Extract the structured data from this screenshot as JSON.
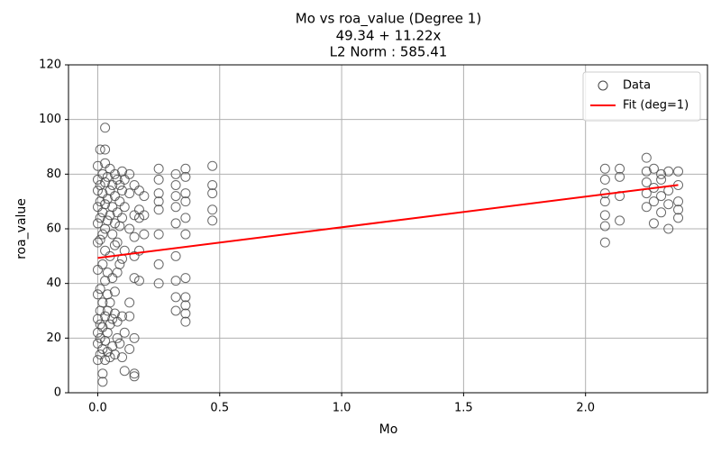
{
  "chart_data": {
    "type": "scatter",
    "title": [
      "Mo vs roa_value (Degree 1)",
      "49.34 + 11.22x",
      "L2 Norm : 585.41"
    ],
    "x_label": "Mo",
    "y_label": "roa_value",
    "xlim": [
      -0.12,
      2.5
    ],
    "ylim": [
      0,
      120
    ],
    "xticks": [
      {
        "value": 0,
        "label": "0.0"
      },
      {
        "value": 0.5,
        "label": "0.5"
      },
      {
        "value": 1,
        "label": "1.0"
      },
      {
        "value": 1.5,
        "label": "1.5"
      },
      {
        "value": 2,
        "label": "2.0"
      }
    ],
    "yticks": [
      0,
      20,
      40,
      60,
      80,
      100,
      120
    ],
    "grid": true,
    "legend": "upper right",
    "series": [
      {
        "name": "Data",
        "color": "#444444",
        "kind": "scatter",
        "x": [
          0,
          0,
          0,
          0,
          0,
          0,
          0,
          0,
          0,
          0,
          0,
          0,
          0.01,
          0.01,
          0.01,
          0.01,
          0.01,
          0.01,
          0.01,
          0.01,
          0.01,
          0.01,
          0.02,
          0.02,
          0.02,
          0.02,
          0.02,
          0.02,
          0.02,
          0.02,
          0.02,
          0.02,
          0.03,
          0.03,
          0.03,
          0.03,
          0.03,
          0.03,
          0.03,
          0.03,
          0.03,
          0.03,
          0.03,
          0.04,
          0.04,
          0.04,
          0.04,
          0.04,
          0.04,
          0.04,
          0.04,
          0.05,
          0.05,
          0.05,
          0.05,
          0.05,
          0.05,
          0.05,
          0.06,
          0.06,
          0.06,
          0.06,
          0.06,
          0.06,
          0.07,
          0.07,
          0.07,
          0.07,
          0.07,
          0.07,
          0.07,
          0.08,
          0.08,
          0.08,
          0.08,
          0.08,
          0.08,
          0.09,
          0.09,
          0.09,
          0.09,
          0.09,
          0.1,
          0.1,
          0.1,
          0.1,
          0.1,
          0.1,
          0.11,
          0.11,
          0.11,
          0.11,
          0.11,
          0.13,
          0.13,
          0.13,
          0.13,
          0.13,
          0.13,
          0.15,
          0.15,
          0.15,
          0.15,
          0.15,
          0.15,
          0.15,
          0.15,
          0.17,
          0.17,
          0.17,
          0.17,
          0.17,
          0.19,
          0.19,
          0.19,
          0.25,
          0.25,
          0.25,
          0.25,
          0.25,
          0.25,
          0.25,
          0.25,
          0.32,
          0.32,
          0.32,
          0.32,
          0.32,
          0.32,
          0.32,
          0.32,
          0.32,
          0.36,
          0.36,
          0.36,
          0.36,
          0.36,
          0.36,
          0.36,
          0.36,
          0.36,
          0.36,
          0.36,
          0.47,
          0.47,
          0.47,
          0.47,
          0.47,
          2.08,
          2.08,
          2.08,
          2.08,
          2.08,
          2.08,
          2.08,
          2.14,
          2.14,
          2.14,
          2.14,
          2.25,
          2.25,
          2.25,
          2.25,
          2.25,
          2.28,
          2.28,
          2.28,
          2.28,
          2.31,
          2.31,
          2.31,
          2.31,
          2.34,
          2.34,
          2.34,
          2.34,
          2.38,
          2.38,
          2.38,
          2.38,
          2.38
        ],
        "values": [
          12,
          18,
          22,
          27,
          36,
          45,
          55,
          62,
          68,
          74,
          78,
          83,
          14,
          20,
          25,
          30,
          38,
          56,
          64,
          70,
          76,
          89,
          4,
          7,
          16,
          24,
          33,
          47,
          58,
          66,
          73,
          80,
          97,
          89,
          12,
          19,
          28,
          41,
          52,
          60,
          69,
          77,
          84,
          15,
          22,
          30,
          36,
          44,
          63,
          71,
          79,
          13,
          25,
          33,
          50,
          65,
          74,
          82,
          17,
          27,
          42,
          58,
          68,
          76,
          14,
          29,
          37,
          54,
          62,
          72,
          80,
          20,
          26,
          44,
          55,
          66,
          78,
          18,
          47,
          61,
          70,
          76,
          13,
          28,
          49,
          64,
          74,
          81,
          8,
          22,
          52,
          68,
          78,
          16,
          28,
          33,
          60,
          73,
          80,
          6,
          7,
          20,
          42,
          50,
          57,
          65,
          76,
          41,
          52,
          64,
          67,
          74,
          58,
          65,
          72,
          40,
          47,
          58,
          67,
          70,
          73,
          78,
          82,
          30,
          35,
          41,
          50,
          62,
          68,
          72,
          76,
          80,
          26,
          29,
          32,
          35,
          42,
          58,
          64,
          70,
          73,
          79,
          82,
          63,
          67,
          73,
          76,
          83,
          55,
          61,
          65,
          70,
          73,
          78,
          82,
          63,
          72,
          79,
          82,
          68,
          73,
          77,
          81,
          86,
          62,
          70,
          75,
          82,
          66,
          72,
          78,
          80,
          60,
          69,
          74,
          81,
          64,
          67,
          70,
          76,
          81
        ]
      },
      {
        "name": "Fit (deg=1)",
        "color": "#ff0000",
        "kind": "line",
        "x": [
          0,
          2.38
        ],
        "values": [
          49.34,
          76.04
        ]
      }
    ]
  }
}
